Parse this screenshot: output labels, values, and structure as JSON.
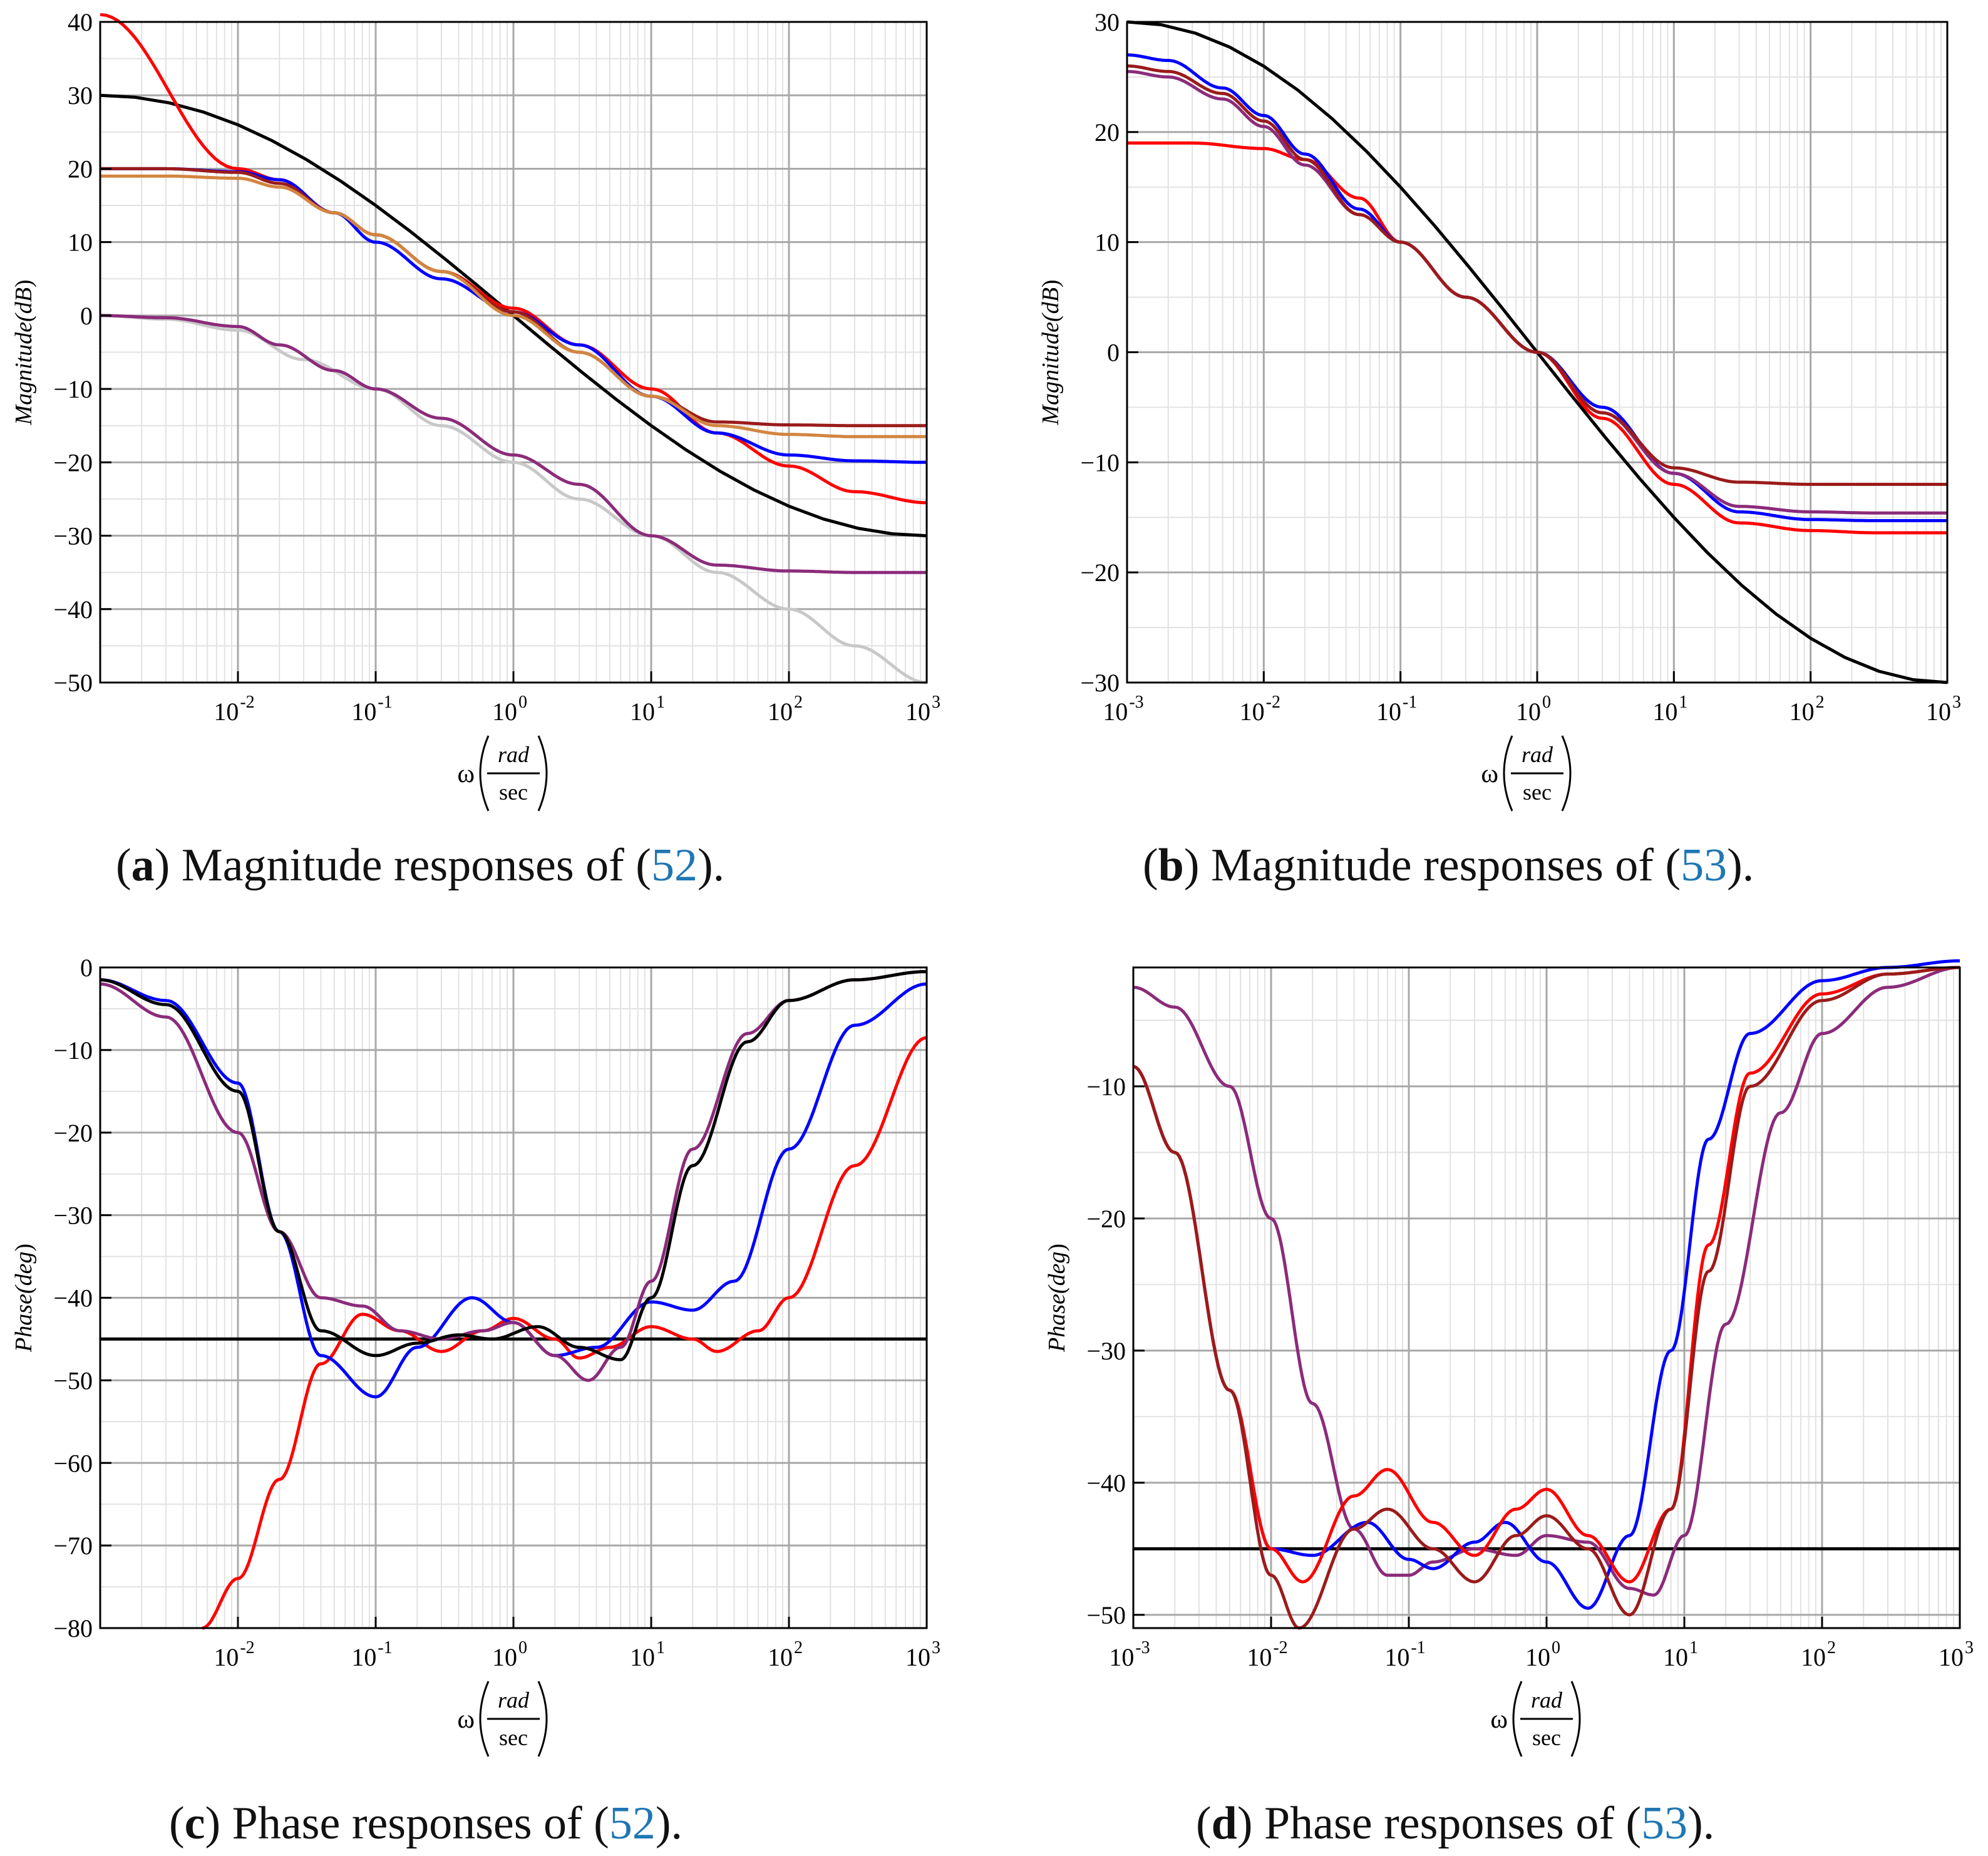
{
  "figure": {
    "colors": {
      "blue": "#0000ff",
      "red": "#ff0000",
      "black": "#000000",
      "purple": "#8b2b7a",
      "darkred": "#9b1b1b",
      "orange": "#d2853f",
      "gray": "#c8c8c8",
      "grid_major": "#a8a8a8",
      "grid_minor": "#e2e2e2",
      "ref": "#1f77b4"
    }
  },
  "captions": [
    {
      "letter": "a",
      "paren_open": "(",
      "paren_close": ")",
      "text": " Magnitude responses of (",
      "ref": "52",
      "end": ")."
    },
    {
      "letter": "b",
      "paren_open": "(",
      "paren_close": ")",
      "text": " Magnitude responses of (",
      "ref": "53",
      "end": ")."
    },
    {
      "letter": "c",
      "paren_open": "(",
      "paren_close": ")",
      "text": " Phase responses of (",
      "ref": "52",
      "end": ")."
    },
    {
      "letter": "d",
      "paren_open": "(",
      "paren_close": ")",
      "text": " Phase responses of (",
      "ref": "53",
      "end": ")."
    }
  ],
  "xlabel": {
    "omega": "ω",
    "num": "rad",
    "den": "sec"
  },
  "chart_data": [
    {
      "id": "a",
      "type": "line",
      "title": "",
      "ylabel": "Magnitude (dB)",
      "ylabel_main": "Magnitude",
      "ylabel_unit": "dB",
      "xscale": "log",
      "xlim": [
        0.001,
        1000
      ],
      "ylim": [
        -50,
        40
      ],
      "xticks": [
        {
          "base": "10",
          "exp": "-2"
        },
        {
          "base": "10",
          "exp": "-1"
        },
        {
          "base": "10",
          "exp": "0"
        },
        {
          "base": "10",
          "exp": "1"
        },
        {
          "base": "10",
          "exp": "2"
        },
        {
          "base": "10",
          "exp": "3"
        }
      ],
      "xtick_values": [
        0.01,
        0.1,
        1,
        10,
        100,
        1000
      ],
      "yticks": [
        "40",
        "30",
        "20",
        "10",
        "0",
        "−10",
        "−20",
        "−30",
        "−40",
        "−50"
      ],
      "ytick_values": [
        40,
        30,
        20,
        10,
        0,
        -10,
        -20,
        -30,
        -40,
        -50
      ],
      "series": [
        {
          "name": "gray",
          "color": "gray",
          "x": [
            0.001,
            0.003,
            0.01,
            0.03,
            0.1,
            0.3,
            1,
            3,
            10,
            30,
            100,
            300,
            1000
          ],
          "values": [
            0,
            -0.5,
            -2,
            -6,
            -10,
            -15,
            -20,
            -25,
            -30,
            -35,
            -40,
            -45,
            -50
          ]
        },
        {
          "name": "purple",
          "color": "purple",
          "x": [
            0.001,
            0.003,
            0.01,
            0.02,
            0.05,
            0.1,
            0.3,
            1,
            3,
            10,
            30,
            100,
            300,
            1000
          ],
          "values": [
            0,
            -0.3,
            -1.5,
            -4,
            -7.5,
            -10,
            -14,
            -19,
            -23,
            -30,
            -34,
            -34.8,
            -35,
            -35
          ]
        },
        {
          "name": "black",
          "color": "black",
          "x": [
            0.001,
            1000
          ],
          "values": [
            30,
            -30
          ]
        },
        {
          "name": "red",
          "color": "red",
          "x": [
            0.001,
            0.01,
            0.02,
            0.05,
            0.1,
            0.3,
            1,
            3,
            10,
            30,
            100,
            300,
            1000
          ],
          "values": [
            41,
            20,
            18.5,
            14,
            11,
            6,
            1,
            -4,
            -10,
            -16,
            -20.5,
            -24,
            -25.5
          ]
        },
        {
          "name": "blue",
          "color": "blue",
          "x": [
            0.001,
            0.003,
            0.01,
            0.02,
            0.05,
            0.1,
            0.3,
            1,
            3,
            10,
            30,
            100,
            300,
            1000
          ],
          "values": [
            20,
            20,
            19.6,
            18.5,
            14,
            10,
            5,
            0.5,
            -4,
            -11,
            -16,
            -19,
            -19.8,
            -20
          ]
        },
        {
          "name": "darkred",
          "color": "darkred",
          "x": [
            0.001,
            0.003,
            0.01,
            0.02,
            0.05,
            0.1,
            0.3,
            1,
            3,
            10,
            30,
            100,
            300,
            1000
          ],
          "values": [
            20,
            20,
            19.5,
            18,
            14,
            11,
            6,
            0.5,
            -5,
            -11,
            -14.5,
            -14.9,
            -15,
            -15
          ]
        },
        {
          "name": "orange",
          "color": "orange",
          "x": [
            0.001,
            0.003,
            0.01,
            0.02,
            0.05,
            0.1,
            0.3,
            1,
            3,
            10,
            30,
            100,
            300,
            1000
          ],
          "values": [
            19,
            19,
            18.7,
            17.5,
            14,
            11,
            6,
            0,
            -5,
            -11,
            -15,
            -16.2,
            -16.5,
            -16.5
          ]
        }
      ]
    },
    {
      "id": "b",
      "type": "line",
      "title": "",
      "ylabel": "Magnitude (dB)",
      "ylabel_main": "Magnitude",
      "ylabel_unit": "dB",
      "xscale": "log",
      "xlim": [
        0.001,
        1000
      ],
      "ylim": [
        -30,
        30
      ],
      "xticks": [
        {
          "base": "10",
          "exp": "-3"
        },
        {
          "base": "10",
          "exp": "-2"
        },
        {
          "base": "10",
          "exp": "-1"
        },
        {
          "base": "10",
          "exp": "0"
        },
        {
          "base": "10",
          "exp": "1"
        },
        {
          "base": "10",
          "exp": "2"
        },
        {
          "base": "10",
          "exp": "3"
        }
      ],
      "xtick_values": [
        0.001,
        0.01,
        0.1,
        1,
        10,
        100,
        1000
      ],
      "yticks": [
        "30",
        "20",
        "10",
        "0",
        "−10",
        "−20",
        "−30"
      ],
      "ytick_values": [
        30,
        20,
        10,
        0,
        -10,
        -20,
        -30
      ],
      "series": [
        {
          "name": "black",
          "color": "black",
          "x": [
            0.001,
            1000
          ],
          "values": [
            30,
            -30
          ]
        },
        {
          "name": "red",
          "color": "red",
          "x": [
            0.001,
            0.003,
            0.01,
            0.02,
            0.05,
            0.1,
            0.3,
            1,
            3,
            10,
            30,
            100,
            300,
            1000
          ],
          "values": [
            19,
            19,
            18.5,
            17.5,
            14,
            10,
            5,
            0,
            -6,
            -12,
            -15.5,
            -16.2,
            -16.4,
            -16.4
          ]
        },
        {
          "name": "blue",
          "color": "blue",
          "x": [
            0.001,
            0.002,
            0.005,
            0.01,
            0.02,
            0.05,
            0.1,
            0.3,
            1,
            3,
            10,
            30,
            100,
            300,
            1000
          ],
          "values": [
            27,
            26.5,
            24,
            21.5,
            18,
            13,
            10,
            5,
            0,
            -5,
            -11,
            -14.5,
            -15.2,
            -15.3,
            -15.3
          ]
        },
        {
          "name": "purple",
          "color": "purple",
          "x": [
            0.001,
            0.002,
            0.005,
            0.01,
            0.02,
            0.05,
            0.1,
            0.3,
            1,
            3,
            10,
            30,
            100,
            300,
            1000
          ],
          "values": [
            25.5,
            25,
            23,
            20.5,
            17,
            12.5,
            10,
            5,
            0,
            -5.5,
            -11,
            -14,
            -14.5,
            -14.6,
            -14.6
          ]
        },
        {
          "name": "darkred",
          "color": "darkred",
          "x": [
            0.001,
            0.002,
            0.005,
            0.01,
            0.02,
            0.05,
            0.1,
            0.3,
            1,
            3,
            10,
            30,
            100,
            300,
            1000
          ],
          "values": [
            26,
            25.5,
            23.5,
            21,
            17.5,
            12.5,
            10,
            5,
            0,
            -5.5,
            -10.5,
            -11.8,
            -12,
            -12,
            -12
          ]
        }
      ]
    },
    {
      "id": "c",
      "type": "line",
      "title": "",
      "ylabel": "Phase (deg)",
      "ylabel_main": "Phase",
      "ylabel_unit": "deg",
      "xscale": "log",
      "xlim": [
        0.001,
        1000
      ],
      "ylim": [
        -80,
        0
      ],
      "xticks": [
        {
          "base": "10",
          "exp": "-2"
        },
        {
          "base": "10",
          "exp": "-1"
        },
        {
          "base": "10",
          "exp": "0"
        },
        {
          "base": "10",
          "exp": "1"
        },
        {
          "base": "10",
          "exp": "2"
        },
        {
          "base": "10",
          "exp": "3"
        }
      ],
      "xtick_values": [
        0.01,
        0.1,
        1,
        10,
        100,
        1000
      ],
      "yticks": [
        "0",
        "−10",
        "−20",
        "−30",
        "−40",
        "−50",
        "−60",
        "−70",
        "−80"
      ],
      "ytick_values": [
        0,
        -10,
        -20,
        -30,
        -40,
        -50,
        -60,
        -70,
        -80
      ],
      "series": [
        {
          "name": "black-ref",
          "color": "black",
          "x": [
            0.001,
            1000
          ],
          "values": [
            -45,
            -45
          ]
        },
        {
          "name": "red",
          "color": "red",
          "x": [
            0.0055,
            0.01,
            0.02,
            0.04,
            0.08,
            0.15,
            0.3,
            0.6,
            1,
            2,
            3,
            5,
            10,
            20,
            30,
            60,
            100,
            300,
            1000
          ],
          "values": [
            -80,
            -74,
            -62,
            -48,
            -42,
            -44,
            -46.5,
            -44,
            -42.5,
            -45,
            -47.3,
            -46,
            -43.5,
            -45,
            -46.5,
            -44,
            -40,
            -24,
            -8.5
          ]
        },
        {
          "name": "blue",
          "color": "blue",
          "x": [
            0.001,
            0.003,
            0.01,
            0.02,
            0.04,
            0.1,
            0.2,
            0.5,
            1,
            2,
            4,
            10,
            20,
            40,
            100,
            300,
            1000
          ],
          "values": [
            -1.5,
            -4,
            -14,
            -32,
            -47,
            -52,
            -46,
            -40,
            -43,
            -47,
            -46,
            -40.5,
            -41.5,
            -38,
            -22,
            -7,
            -2
          ]
        },
        {
          "name": "purple",
          "color": "purple",
          "x": [
            0.001,
            0.003,
            0.01,
            0.02,
            0.04,
            0.08,
            0.15,
            0.3,
            0.6,
            1,
            2,
            3.5,
            6,
            10,
            20,
            50,
            100,
            300,
            1000
          ],
          "values": [
            -2,
            -6,
            -20,
            -32,
            -40,
            -41,
            -44,
            -45,
            -44,
            -43,
            -47,
            -50,
            -46,
            -38,
            -22,
            -8,
            -4,
            -1.5,
            -0.5
          ]
        },
        {
          "name": "black",
          "color": "black",
          "x": [
            0.001,
            0.003,
            0.01,
            0.02,
            0.04,
            0.1,
            0.2,
            0.4,
            0.7,
            1.5,
            3,
            6,
            10,
            20,
            50,
            100,
            300,
            1000
          ],
          "values": [
            -1.5,
            -4.5,
            -15,
            -32,
            -44,
            -47,
            -45.5,
            -44.5,
            -45,
            -43.5,
            -46,
            -47.5,
            -40,
            -24,
            -9,
            -4,
            -1.5,
            -0.5
          ]
        }
      ]
    },
    {
      "id": "d",
      "type": "line",
      "title": "",
      "ylabel": "Phase (deg)",
      "ylabel_main": "Phase",
      "ylabel_unit": "deg",
      "xscale": "log",
      "xlim": [
        0.001,
        1000
      ],
      "ylim": [
        -51,
        -1
      ],
      "xticks": [
        {
          "base": "10",
          "exp": "-3"
        },
        {
          "base": "10",
          "exp": "-2"
        },
        {
          "base": "10",
          "exp": "-1"
        },
        {
          "base": "10",
          "exp": "0"
        },
        {
          "base": "10",
          "exp": "1"
        },
        {
          "base": "10",
          "exp": "2"
        },
        {
          "base": "10",
          "exp": "3"
        }
      ],
      "xtick_values": [
        0.001,
        0.01,
        0.1,
        1,
        10,
        100,
        1000
      ],
      "yticks": [
        "−10",
        "−20",
        "−30",
        "−40",
        "−50"
      ],
      "ytick_values": [
        -10,
        -20,
        -30,
        -40,
        -50
      ],
      "series": [
        {
          "name": "black-ref",
          "color": "black",
          "x": [
            0.001,
            1000
          ],
          "values": [
            -45,
            -45
          ]
        },
        {
          "name": "purple",
          "color": "purple",
          "x": [
            0.001,
            0.002,
            0.005,
            0.01,
            0.02,
            0.04,
            0.07,
            0.1,
            0.15,
            0.3,
            0.6,
            1,
            2,
            4,
            6,
            10,
            20,
            50,
            100,
            300,
            1000
          ],
          "values": [
            -2.5,
            -4,
            -10,
            -20,
            -34,
            -43.5,
            -47,
            -47,
            -46,
            -45,
            -45.5,
            -44,
            -44.5,
            -48,
            -48.5,
            -44,
            -28,
            -12,
            -6,
            -2.5,
            -1
          ]
        },
        {
          "name": "blue",
          "color": "blue",
          "x": [
            0.001,
            0.002,
            0.005,
            0.01,
            0.02,
            0.05,
            0.1,
            0.15,
            0.3,
            0.5,
            1,
            2,
            4,
            8,
            15,
            30,
            100,
            300,
            1000
          ],
          "values": [
            -8.5,
            -15,
            -33,
            -45,
            -45.5,
            -43,
            -45.8,
            -46.5,
            -44.5,
            -43,
            -46,
            -49.5,
            -44,
            -30,
            -14,
            -6,
            -2,
            -1,
            -0.5
          ]
        },
        {
          "name": "red",
          "color": "red",
          "x": [
            0.001,
            0.002,
            0.005,
            0.01,
            0.017,
            0.04,
            0.07,
            0.15,
            0.3,
            0.6,
            1,
            2,
            4,
            8,
            15,
            30,
            100,
            300,
            1000
          ],
          "values": [
            -8.5,
            -15,
            -33,
            -45,
            -47.5,
            -41,
            -39,
            -43,
            -45.5,
            -42,
            -40.5,
            -44,
            -47.5,
            -42,
            -22,
            -9,
            -3,
            -1.5,
            -1
          ]
        },
        {
          "name": "darkred",
          "color": "darkred",
          "x": [
            0.001,
            0.002,
            0.005,
            0.01,
            0.016,
            0.04,
            0.07,
            0.15,
            0.3,
            0.6,
            1,
            2,
            4,
            8,
            15,
            30,
            100,
            300,
            1000
          ],
          "values": [
            -8.5,
            -15,
            -33,
            -47,
            -51,
            -43.5,
            -42,
            -45,
            -47.5,
            -44,
            -42.5,
            -45,
            -50,
            -42,
            -24,
            -10,
            -3.5,
            -1.5,
            -1
          ]
        }
      ]
    }
  ]
}
